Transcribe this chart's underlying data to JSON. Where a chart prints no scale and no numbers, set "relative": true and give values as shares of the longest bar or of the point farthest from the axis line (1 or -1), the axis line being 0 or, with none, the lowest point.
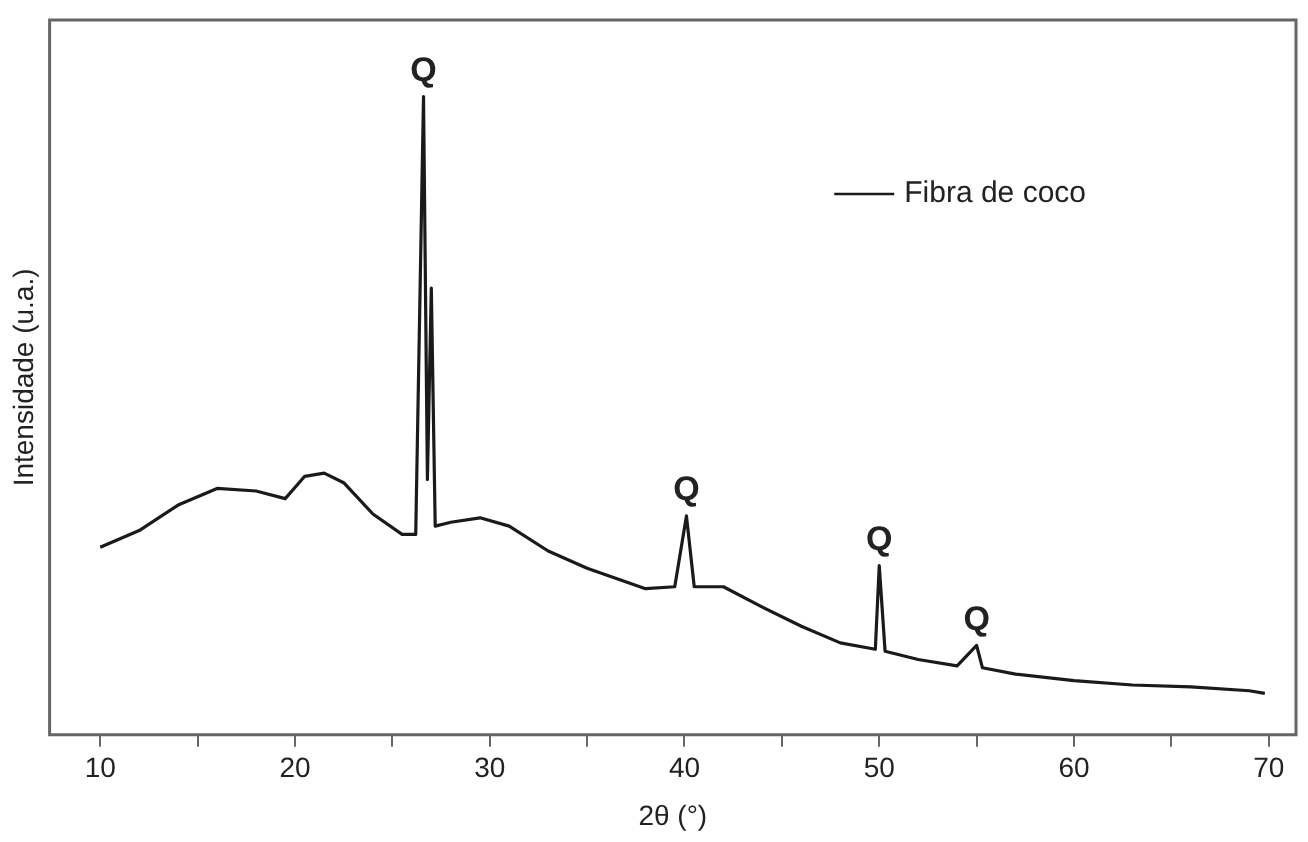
{
  "chart_data": {
    "type": "line",
    "xlabel": "2θ (°)",
    "ylabel": "Intensidade (u.a.)",
    "relative": true,
    "tick_labels": "x",
    "legend": "top right",
    "marker": "none",
    "line_style": "solid",
    "grid": false,
    "xlim": [
      7.4,
      71.4
    ],
    "xticks": [
      10,
      {
        "value": 15,
        "label": null
      },
      20,
      {
        "value": 25,
        "label": null
      },
      30,
      {
        "value": 35,
        "label": null
      },
      40,
      {
        "value": 45,
        "label": null
      },
      50,
      {
        "value": 55,
        "label": null
      },
      60,
      {
        "value": 65,
        "label": null
      },
      70
    ],
    "series": [
      {
        "name": "Fibra de coco",
        "color": "#1a1a1a",
        "x": [
          10,
          12,
          14,
          16,
          18,
          19.5,
          20.5,
          21.5,
          22.5,
          24,
          25.5,
          26.2,
          26.6,
          26.8,
          27,
          27.2,
          28,
          29.5,
          31,
          33,
          35,
          36.5,
          38,
          39.5,
          40.1,
          40.5,
          42,
          44,
          46,
          48,
          49.8,
          50,
          50.3,
          52,
          54,
          55,
          55.3,
          57,
          60,
          63,
          66,
          69,
          69.8
        ],
        "values": [
          0.294,
          0.32,
          0.36,
          0.386,
          0.382,
          0.37,
          0.405,
          0.41,
          0.395,
          0.346,
          0.314,
          0.314,
          1,
          0.4,
          0.7,
          0.327,
          0.333,
          0.34,
          0.327,
          0.288,
          0.261,
          0.245,
          0.229,
          0.232,
          0.343,
          0.232,
          0.232,
          0.2,
          0.17,
          0.144,
          0.134,
          0.265,
          0.131,
          0.118,
          0.108,
          0.14,
          0.105,
          0.095,
          0.085,
          0.078,
          0.075,
          0.069,
          0.065
        ]
      }
    ],
    "annotations": [
      {
        "text": "Q",
        "x": 26.6,
        "y": 1
      },
      {
        "text": "Q",
        "x": 40.1,
        "y": 0.343
      },
      {
        "text": "Q",
        "x": 50,
        "y": 0.265
      },
      {
        "text": "Q",
        "x": 55,
        "y": 0.14
      }
    ]
  }
}
